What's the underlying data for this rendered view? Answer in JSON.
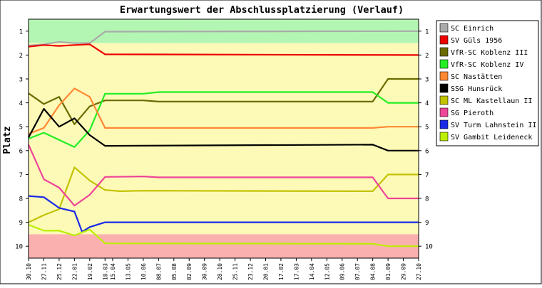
{
  "chart_data": {
    "type": "line",
    "title": "Erwartungswert der Abschlussplatzierung (Verlauf)",
    "ylabel": "Platz",
    "xlabel": "",
    "y_ticks": [
      1,
      2,
      3,
      4,
      5,
      6,
      7,
      8,
      9,
      10
    ],
    "ylim": [
      0.5,
      10.5
    ],
    "y_inverted": true,
    "x": [
      "30.10",
      "27.11",
      "25.12",
      "22.01",
      "19.02",
      "18.03",
      "15.04",
      "13.05",
      "10.06",
      "08.07",
      "05.08",
      "02.09",
      "30.09",
      "28.10",
      "25.11",
      "23.12",
      "20.01",
      "17.02",
      "17.03",
      "14.04",
      "12.05",
      "09.06",
      "07.07",
      "04.08",
      "01.09",
      "29.09",
      "27.10"
    ],
    "x_tick_positions": [
      0,
      2,
      4,
      6,
      8,
      10,
      11,
      13,
      15,
      17,
      19,
      21,
      23,
      25,
      27,
      29,
      31,
      33,
      35,
      37,
      39,
      41,
      43,
      45,
      47,
      49,
      51
    ],
    "x_range": [
      0,
      51
    ],
    "zones": [
      {
        "from": 0.5,
        "to": 1.5,
        "color": "#b3f5b3"
      },
      {
        "from": 1.5,
        "to": 9.5,
        "color": "#fdfab8"
      },
      {
        "from": 9.5,
        "to": 10.5,
        "color": "#fbb0b0"
      }
    ],
    "legend_position": "right",
    "grid": false,
    "series": [
      {
        "name": "SC Einrich",
        "color": "#aaaaaa",
        "values": [
          [
            0,
            1.6
          ],
          [
            2,
            1.55
          ],
          [
            4,
            1.45
          ],
          [
            6,
            1.5
          ],
          [
            8,
            1.5
          ],
          [
            10,
            1.02
          ],
          [
            51,
            1.0
          ]
        ]
      },
      {
        "name": "SV Güls 1956",
        "color": "#ee0000",
        "values": [
          [
            0,
            1.65
          ],
          [
            2,
            1.58
          ],
          [
            4,
            1.62
          ],
          [
            6,
            1.58
          ],
          [
            8,
            1.55
          ],
          [
            10,
            1.97
          ],
          [
            51,
            2.0
          ]
        ]
      },
      {
        "name": "VfR-SC Koblenz III",
        "color": "#6b6b00",
        "values": [
          [
            0,
            3.6
          ],
          [
            2,
            4.05
          ],
          [
            4,
            3.75
          ],
          [
            6,
            4.9
          ],
          [
            8,
            4.15
          ],
          [
            10,
            3.9
          ],
          [
            15,
            3.9
          ],
          [
            17,
            3.95
          ],
          [
            45,
            3.95
          ],
          [
            47,
            3.0
          ],
          [
            51,
            3.0
          ]
        ]
      },
      {
        "name": "VfR-SC Koblenz IV",
        "color": "#22ee22",
        "values": [
          [
            0,
            5.5
          ],
          [
            2,
            5.25
          ],
          [
            4,
            5.55
          ],
          [
            6,
            5.85
          ],
          [
            8,
            5.15
          ],
          [
            10,
            3.62
          ],
          [
            15,
            3.62
          ],
          [
            17,
            3.55
          ],
          [
            45,
            3.55
          ],
          [
            47,
            4.0
          ],
          [
            51,
            4.0
          ]
        ]
      },
      {
        "name": "SC Nastätten",
        "color": "#ff8833",
        "values": [
          [
            0,
            5.3
          ],
          [
            2,
            5.05
          ],
          [
            4,
            4.1
          ],
          [
            6,
            3.4
          ],
          [
            8,
            3.75
          ],
          [
            10,
            5.05
          ],
          [
            45,
            5.05
          ],
          [
            47,
            5.0
          ],
          [
            51,
            5.0
          ]
        ]
      },
      {
        "name": "SSG Hunsrück",
        "color": "#000000",
        "values": [
          [
            0,
            5.45
          ],
          [
            2,
            4.25
          ],
          [
            4,
            5.0
          ],
          [
            6,
            4.65
          ],
          [
            8,
            5.35
          ],
          [
            10,
            5.8
          ],
          [
            45,
            5.75
          ],
          [
            47,
            6.0
          ],
          [
            51,
            6.0
          ]
        ]
      },
      {
        "name": "SC ML Kastellaun II",
        "color": "#c2c200",
        "values": [
          [
            0,
            9.0
          ],
          [
            2,
            8.7
          ],
          [
            4,
            8.45
          ],
          [
            6,
            6.7
          ],
          [
            8,
            7.25
          ],
          [
            10,
            7.65
          ],
          [
            12,
            7.7
          ],
          [
            15,
            7.68
          ],
          [
            45,
            7.7
          ],
          [
            47,
            7.0
          ],
          [
            51,
            7.0
          ]
        ]
      },
      {
        "name": "SG Pieroth",
        "color": "#ee4499",
        "values": [
          [
            0,
            5.75
          ],
          [
            2,
            7.2
          ],
          [
            4,
            7.55
          ],
          [
            6,
            8.3
          ],
          [
            8,
            7.85
          ],
          [
            10,
            7.1
          ],
          [
            15,
            7.08
          ],
          [
            17,
            7.12
          ],
          [
            45,
            7.12
          ],
          [
            47,
            8.0
          ],
          [
            51,
            8.0
          ]
        ]
      },
      {
        "name": "SV Turm Lahnstein II",
        "color": "#1a2ae6",
        "values": [
          [
            0,
            7.9
          ],
          [
            2,
            7.95
          ],
          [
            4,
            8.4
          ],
          [
            6,
            8.55
          ],
          [
            7,
            9.4
          ],
          [
            8,
            9.2
          ],
          [
            10,
            9.0
          ],
          [
            51,
            9.0
          ]
        ]
      },
      {
        "name": "SV Gambit Leideneck",
        "color": "#bbee00",
        "values": [
          [
            0,
            9.1
          ],
          [
            2,
            9.35
          ],
          [
            4,
            9.35
          ],
          [
            6,
            9.55
          ],
          [
            8,
            9.3
          ],
          [
            10,
            9.88
          ],
          [
            45,
            9.9
          ],
          [
            47,
            10.0
          ],
          [
            51,
            10.0
          ]
        ]
      }
    ]
  }
}
